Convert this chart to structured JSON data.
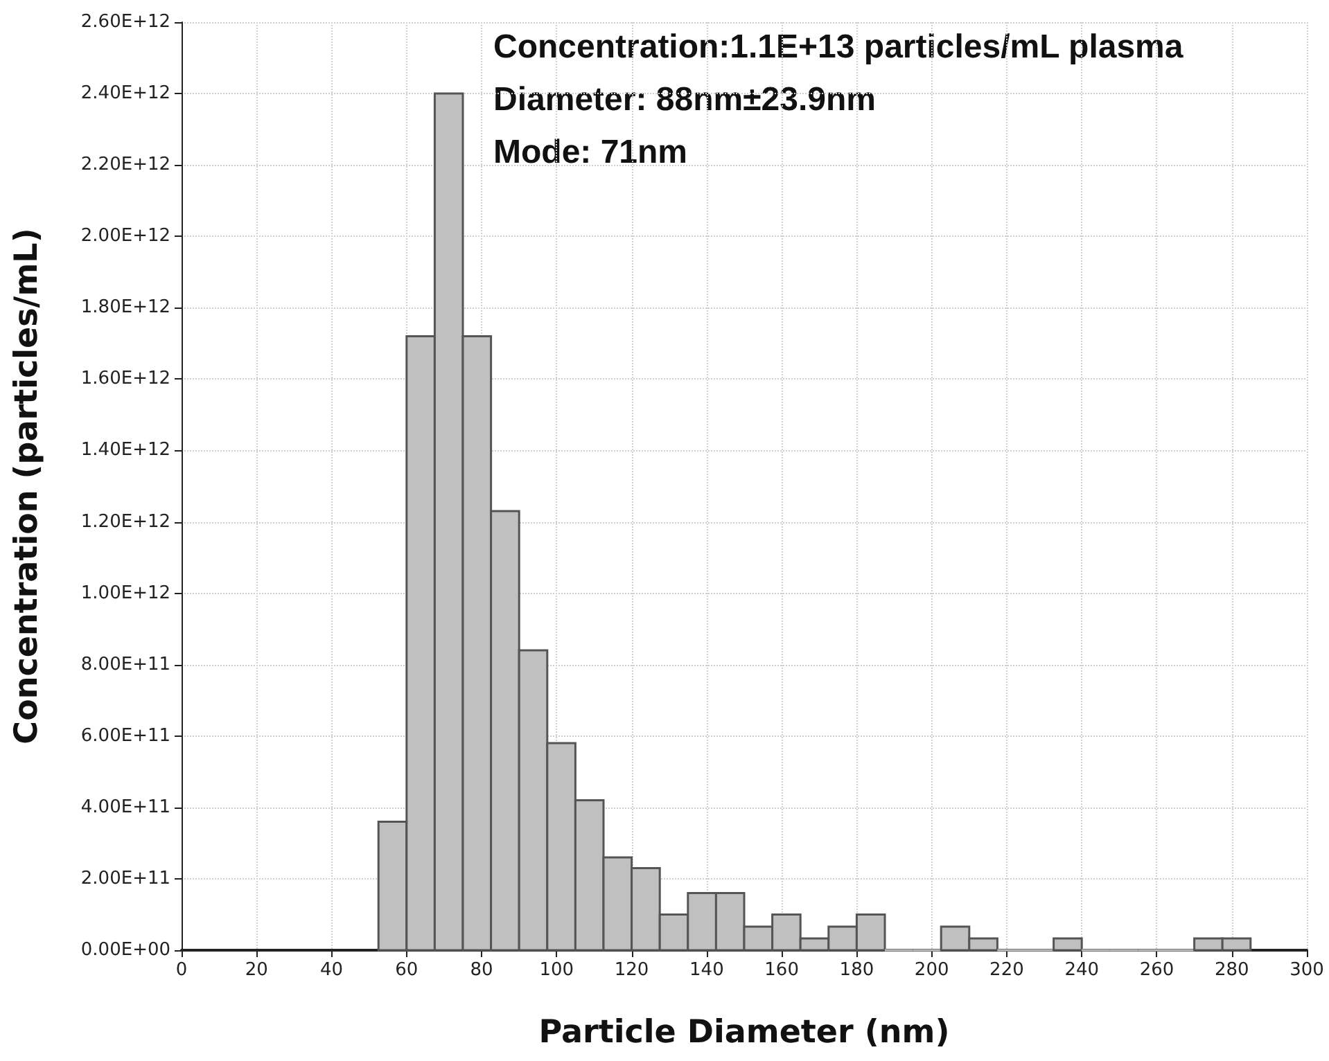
{
  "chart_data": {
    "type": "histogram",
    "xlabel": "Particle Diameter (nm)",
    "ylabel": "Concentration (particles/mL)",
    "annotations": [
      "Concentration:1.1E+13 particles/mL plasma",
      "Diameter: 88nm±23.9nm",
      "Mode: 71nm"
    ],
    "bins": [
      52.5,
      60,
      67.5,
      75,
      82.5,
      90,
      97.5,
      105,
      112.5,
      120,
      127.5,
      135,
      142.5,
      150,
      157.5,
      165,
      172.5,
      180,
      187.5,
      195,
      202.5,
      210,
      217.5,
      225,
      232.5,
      240,
      247.5,
      255,
      262.5,
      270,
      277.5,
      285
    ],
    "values": [
      360000000000.0,
      1720000000000.0,
      2400000000000.0,
      1720000000000.0,
      1230000000000.0,
      840000000000.0,
      580000000000.0,
      420000000000.0,
      260000000000.0,
      230000000000.0,
      100000000000.0,
      160000000000.0,
      160000000000.0,
      66000000000.0,
      100000000000.0,
      33000000000.0,
      66000000000.0,
      100000000000.0,
      0,
      0,
      66000000000.0,
      33000000000.0,
      0,
      0,
      33000000000.0,
      0,
      0,
      0,
      0,
      33000000000.0,
      33000000000.0
    ],
    "color": "#c0c0c0",
    "xlim": [
      0,
      300
    ],
    "xticks": [
      0,
      20,
      40,
      60,
      80,
      100,
      120,
      140,
      160,
      180,
      200,
      220,
      240,
      260,
      280,
      300
    ],
    "ylim": [
      0,
      2600000000000.0
    ],
    "yticks": [
      {
        "value": 0,
        "label": "0.00E+00"
      },
      {
        "value": 200000000000.0,
        "label": "2.00E+11"
      },
      {
        "value": 400000000000.0,
        "label": "4.00E+11"
      },
      {
        "value": 600000000000.0,
        "label": "6.00E+11"
      },
      {
        "value": 800000000000.0,
        "label": "8.00E+11"
      },
      {
        "value": 1000000000000.0,
        "label": "1.00E+12"
      },
      {
        "value": 1200000000000.0,
        "label": "1.20E+12"
      },
      {
        "value": 1400000000000.0,
        "label": "1.40E+12"
      },
      {
        "value": 1600000000000.0,
        "label": "1.60E+12"
      },
      {
        "value": 1800000000000.0,
        "label": "1.80E+12"
      },
      {
        "value": 2000000000000.0,
        "label": "2.00E+12"
      },
      {
        "value": 2200000000000.0,
        "label": "2.20E+12"
      },
      {
        "value": 2400000000000.0,
        "label": "2.40E+12"
      },
      {
        "value": 2600000000000.0,
        "label": "2.60E+12"
      }
    ],
    "grid": true
  }
}
